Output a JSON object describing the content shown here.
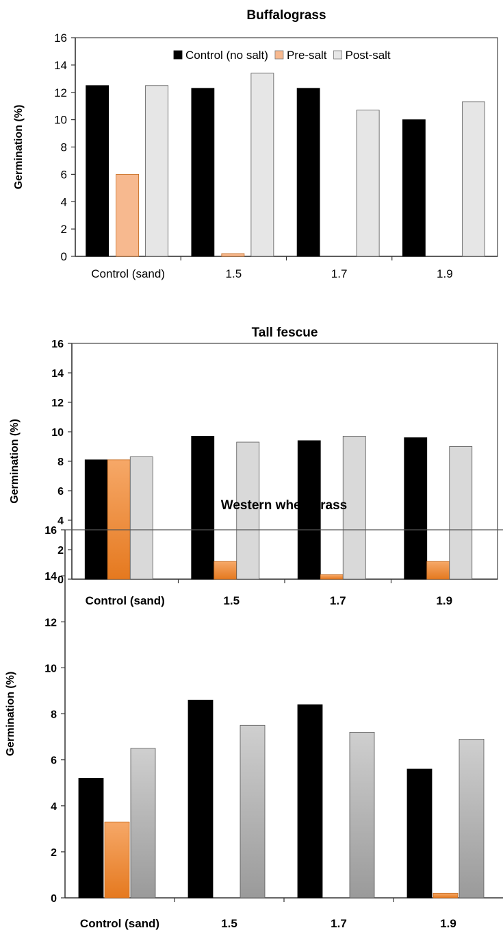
{
  "chart_data": [
    {
      "type": "bar",
      "title": "Buffalograss",
      "ylabel": "Germination (%)",
      "xlabel": "",
      "ylim": [
        0,
        16
      ],
      "yticks": [
        0,
        2,
        4,
        6,
        8,
        10,
        12,
        14,
        16
      ],
      "categories": [
        "Control (sand)",
        "1.5",
        "1.7",
        "1.9"
      ],
      "series": [
        {
          "name": "Control (no salt)",
          "values": [
            12.5,
            12.3,
            12.3,
            10.0
          ],
          "color": "#000000"
        },
        {
          "name": "Pre-salt",
          "values": [
            6.0,
            0.2,
            0.0,
            0.0
          ],
          "color": "#F7B98F"
        },
        {
          "name": "Post-salt",
          "values": [
            12.5,
            13.4,
            10.7,
            11.3
          ],
          "color": "#E6E6E6"
        }
      ],
      "legend": "top",
      "grid": false
    },
    {
      "type": "bar",
      "title": "Tall fescue",
      "ylabel": "Germination (%)",
      "xlabel": "",
      "ylim": [
        0,
        16
      ],
      "yticks": [
        0,
        2,
        4,
        6,
        8,
        10,
        12,
        14,
        16
      ],
      "categories": [
        "Control (sand)",
        "1.5",
        "1.7",
        "1.9"
      ],
      "series": [
        {
          "values": [
            8.1,
            9.7,
            9.4,
            9.6
          ],
          "color": "#000000"
        },
        {
          "values": [
            8.1,
            1.2,
            0.3,
            1.2
          ],
          "color": "#E8812E"
        },
        {
          "values": [
            8.3,
            9.3,
            9.7,
            9.0
          ],
          "color": "#D9D9D9"
        }
      ],
      "legend": "none",
      "grid": false
    },
    {
      "type": "bar",
      "title": "Western wheatgrass",
      "ylabel": "Germination (%)",
      "xlabel": "",
      "ylim": [
        0,
        16
      ],
      "yticks": [
        0,
        2,
        4,
        6,
        8,
        10,
        12,
        14,
        16
      ],
      "categories": [
        "Control (sand)",
        "1.5",
        "1.7",
        "1.9"
      ],
      "series": [
        {
          "values": [
            5.2,
            8.6,
            8.4,
            5.6
          ],
          "color": "#000000"
        },
        {
          "values": [
            3.3,
            0.0,
            0.0,
            0.2
          ],
          "color": "#E8812E"
        },
        {
          "values": [
            6.5,
            7.5,
            7.2,
            6.9
          ],
          "color": "#B3B3B3"
        }
      ],
      "legend": "none",
      "grid": false
    }
  ]
}
